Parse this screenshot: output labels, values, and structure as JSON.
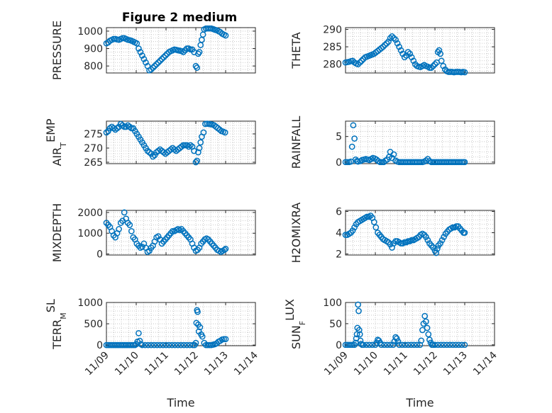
{
  "figure": {
    "title": "Figure 2 medium",
    "background": "#ffffff",
    "marker_color": "#0072BD"
  },
  "chart_data": [
    {
      "type": "scatter",
      "panel": "pressure",
      "title": "Figure 2 medium",
      "ylabel": "PRESSURE",
      "xlim": [
        0,
        5
      ],
      "ylim": [
        760,
        1020
      ],
      "yticks": [
        800,
        900,
        1000
      ],
      "xtick_labels": [
        "11/09",
        "11/10",
        "11/11",
        "11/12",
        "11/13",
        "11/14"
      ],
      "grid": true,
      "show_xticklabels": false,
      "xlabel": "",
      "x": [
        0.0,
        0.06,
        0.12,
        0.18,
        0.24,
        0.3,
        0.36,
        0.42,
        0.48,
        0.54,
        0.6,
        0.66,
        0.72,
        0.78,
        0.84,
        0.9,
        0.96,
        1.02,
        1.08,
        1.14,
        1.2,
        1.26,
        1.32,
        1.38,
        1.44,
        1.5,
        1.56,
        1.62,
        1.68,
        1.74,
        1.8,
        1.86,
        1.92,
        1.98,
        2.04,
        2.1,
        2.16,
        2.22,
        2.28,
        2.34,
        2.4,
        2.46,
        2.52,
        2.58,
        2.64,
        2.7,
        2.76,
        2.82,
        2.88,
        2.94,
        3.0,
        3.04,
        3.08,
        3.12,
        3.16,
        3.2,
        3.24,
        3.28,
        3.34,
        3.4,
        3.46,
        3.52,
        3.58,
        3.64,
        3.7,
        3.76,
        3.82,
        3.88,
        3.94,
        4.0
      ],
      "y": [
        930,
        935,
        945,
        950,
        955,
        955,
        952,
        950,
        955,
        960,
        960,
        955,
        950,
        948,
        945,
        940,
        935,
        930,
        900,
        880,
        860,
        840,
        820,
        800,
        775,
        780,
        790,
        800,
        810,
        820,
        830,
        840,
        850,
        860,
        870,
        880,
        885,
        890,
        895,
        893,
        890,
        888,
        885,
        880,
        890,
        900,
        900,
        895,
        895,
        880,
        800,
        790,
        870,
        880,
        920,
        950,
        980,
        1010,
        1015,
        1015,
        1015,
        1015,
        1012,
        1008,
        1005,
        1000,
        995,
        985,
        980,
        975
      ]
    },
    {
      "type": "scatter",
      "panel": "theta",
      "title": "",
      "ylabel": "THETA",
      "xlim": [
        0,
        5
      ],
      "ylim": [
        277.5,
        290.5
      ],
      "yticks": [
        280,
        285,
        290
      ],
      "xtick_labels": [
        "11/09",
        "11/10",
        "11/11",
        "11/12",
        "11/13",
        "11/14"
      ],
      "grid": true,
      "show_xticklabels": false,
      "xlabel": "",
      "x": [
        0.0,
        0.06,
        0.12,
        0.18,
        0.24,
        0.3,
        0.36,
        0.42,
        0.48,
        0.54,
        0.6,
        0.66,
        0.72,
        0.78,
        0.84,
        0.9,
        0.96,
        1.02,
        1.08,
        1.14,
        1.2,
        1.26,
        1.32,
        1.38,
        1.44,
        1.5,
        1.56,
        1.62,
        1.68,
        1.74,
        1.8,
        1.86,
        1.92,
        1.98,
        2.04,
        2.1,
        2.16,
        2.22,
        2.28,
        2.34,
        2.4,
        2.46,
        2.52,
        2.58,
        2.64,
        2.7,
        2.76,
        2.82,
        2.88,
        2.94,
        3.0,
        3.06,
        3.1,
        3.14,
        3.18,
        3.22,
        3.28,
        3.34,
        3.4,
        3.46,
        3.52,
        3.58,
        3.64,
        3.7,
        3.76,
        3.82,
        3.88,
        3.94,
        4.0
      ],
      "y": [
        280.5,
        280.6,
        280.7,
        280.9,
        281.0,
        280.5,
        280.2,
        280.0,
        280.5,
        281.0,
        281.5,
        282.0,
        282.2,
        282.4,
        282.6,
        282.8,
        283.0,
        283.4,
        283.8,
        284.2,
        284.6,
        285.0,
        285.5,
        286.0,
        286.5,
        287.5,
        288.0,
        287.5,
        287.0,
        286.0,
        285.0,
        284.0,
        283.0,
        282.0,
        282.5,
        283.5,
        283.0,
        282.0,
        281.0,
        280.0,
        279.5,
        279.3,
        279.2,
        279.5,
        279.8,
        279.5,
        279.3,
        279.0,
        279.0,
        279.5,
        280.0,
        280.5,
        283.5,
        284.0,
        283.0,
        281.0,
        279.5,
        278.5,
        278.0,
        277.8,
        277.8,
        277.8,
        277.7,
        277.8,
        277.8,
        277.8,
        277.7,
        277.8,
        277.7
      ]
    },
    {
      "type": "scatter",
      "panel": "air_temp",
      "title": "",
      "ylabel_main": "AIR",
      "ylabel_sub": "T",
      "ylabel_rest": "EMP",
      "xlim": [
        0,
        5
      ],
      "ylim": [
        264.5,
        279.5
      ],
      "yticks": [
        265,
        270,
        275
      ],
      "xtick_labels": [
        "11/09",
        "11/10",
        "11/11",
        "11/12",
        "11/13",
        "11/14"
      ],
      "grid": true,
      "show_xticklabels": false,
      "xlabel": "",
      "x": [
        0.0,
        0.06,
        0.12,
        0.18,
        0.24,
        0.3,
        0.36,
        0.42,
        0.48,
        0.54,
        0.6,
        0.66,
        0.72,
        0.78,
        0.84,
        0.9,
        0.96,
        1.02,
        1.08,
        1.14,
        1.2,
        1.26,
        1.32,
        1.38,
        1.44,
        1.5,
        1.56,
        1.62,
        1.68,
        1.74,
        1.8,
        1.86,
        1.92,
        1.98,
        2.04,
        2.1,
        2.16,
        2.22,
        2.28,
        2.34,
        2.4,
        2.46,
        2.52,
        2.58,
        2.64,
        2.7,
        2.76,
        2.82,
        2.88,
        2.94,
        3.0,
        3.04,
        3.08,
        3.12,
        3.16,
        3.2,
        3.26,
        3.32,
        3.38,
        3.44,
        3.5,
        3.56,
        3.62,
        3.68,
        3.74,
        3.8,
        3.86,
        3.92,
        3.98
      ],
      "y": [
        275.5,
        276.0,
        277.0,
        277.5,
        277.0,
        276.5,
        277.0,
        277.5,
        278.5,
        278.0,
        277.5,
        277.5,
        278.0,
        277.5,
        277.0,
        277.0,
        276.0,
        275.0,
        274.0,
        273.0,
        272.0,
        271.0,
        270.0,
        269.0,
        268.5,
        268.0,
        267.0,
        267.5,
        268.5,
        269.0,
        269.5,
        269.0,
        268.5,
        268.0,
        268.5,
        269.0,
        269.5,
        270.0,
        269.5,
        269.0,
        269.5,
        270.0,
        270.5,
        271.0,
        271.0,
        271.0,
        270.5,
        271.0,
        270.5,
        269.0,
        265.0,
        265.5,
        268.5,
        270.0,
        272.0,
        274.0,
        275.5,
        278.5,
        278.6,
        278.5,
        278.4,
        278.3,
        278.0,
        277.5,
        277.0,
        276.5,
        276.0,
        275.8,
        275.5
      ]
    },
    {
      "type": "scatter",
      "panel": "rainfall",
      "title": "",
      "ylabel": "RAINFALL",
      "xlim": [
        0,
        5
      ],
      "ylim": [
        -0.3,
        8
      ],
      "yticks": [
        0,
        5
      ],
      "xtick_labels": [
        "11/09",
        "11/10",
        "11/11",
        "11/12",
        "11/13",
        "11/14"
      ],
      "grid": true,
      "show_xticklabels": false,
      "xlabel": "",
      "x": [
        0.0,
        0.06,
        0.12,
        0.18,
        0.22,
        0.26,
        0.3,
        0.34,
        0.38,
        0.42,
        0.5,
        0.56,
        0.62,
        0.68,
        0.74,
        0.8,
        0.86,
        0.92,
        0.98,
        1.04,
        1.1,
        1.16,
        1.22,
        1.28,
        1.34,
        1.4,
        1.46,
        1.5,
        1.56,
        1.62,
        1.68,
        1.74,
        1.8,
        1.86,
        1.92,
        1.98,
        2.04,
        2.1,
        2.16,
        2.22,
        2.28,
        2.34,
        2.4,
        2.46,
        2.52,
        2.58,
        2.64,
        2.7,
        2.76,
        2.82,
        2.88,
        2.94,
        3.0,
        3.06,
        3.12,
        3.18,
        3.24,
        3.3,
        3.36,
        3.42,
        3.48,
        3.54,
        3.6,
        3.66,
        3.72,
        3.78,
        3.84,
        3.9,
        3.96,
        4.0
      ],
      "y": [
        0,
        0,
        0,
        0.1,
        3.0,
        7.2,
        4.6,
        0.5,
        0.2,
        0.1,
        0.2,
        0.4,
        0.5,
        0.6,
        0.5,
        0.4,
        0.6,
        0.8,
        0.7,
        0.5,
        0.2,
        0,
        0,
        0,
        0.3,
        0.5,
        1.0,
        2.0,
        0.8,
        1.5,
        0.3,
        0.1,
        0,
        0,
        0,
        0,
        0,
        0,
        0,
        0,
        0,
        0,
        0,
        0,
        0,
        0,
        0.1,
        0.3,
        0.6,
        0.2,
        0,
        0,
        0,
        0,
        0,
        0,
        0,
        0,
        0,
        0,
        0,
        0,
        0,
        0,
        0,
        0,
        0,
        0,
        0,
        0
      ]
    },
    {
      "type": "scatter",
      "panel": "mixdepth",
      "title": "",
      "ylabel": "MIXDEPTH",
      "xlim": [
        0,
        5
      ],
      "ylim": [
        -50,
        2100
      ],
      "yticks": [
        0,
        1000,
        2000
      ],
      "xtick_labels": [
        "11/09",
        "11/10",
        "11/11",
        "11/12",
        "11/13",
        "11/14"
      ],
      "grid": true,
      "show_xticklabels": false,
      "xlabel": "",
      "x": [
        0.0,
        0.06,
        0.12,
        0.18,
        0.24,
        0.3,
        0.36,
        0.42,
        0.48,
        0.54,
        0.6,
        0.66,
        0.72,
        0.78,
        0.84,
        0.9,
        0.96,
        1.02,
        1.08,
        1.14,
        1.2,
        1.26,
        1.32,
        1.38,
        1.44,
        1.5,
        1.56,
        1.62,
        1.68,
        1.74,
        1.8,
        1.86,
        1.92,
        1.98,
        2.04,
        2.1,
        2.16,
        2.22,
        2.28,
        2.34,
        2.4,
        2.46,
        2.52,
        2.58,
        2.64,
        2.7,
        2.76,
        2.82,
        2.88,
        2.94,
        3.0,
        3.06,
        3.12,
        3.18,
        3.24,
        3.3,
        3.36,
        3.42,
        3.48,
        3.54,
        3.6,
        3.66,
        3.72,
        3.78,
        3.84,
        3.9,
        3.96,
        4.0
      ],
      "y": [
        1500,
        1400,
        1300,
        1100,
        900,
        800,
        1000,
        1200,
        1500,
        1600,
        2000,
        1700,
        1500,
        1400,
        1100,
        800,
        700,
        500,
        400,
        300,
        350,
        500,
        300,
        100,
        150,
        300,
        400,
        600,
        800,
        850,
        700,
        500,
        600,
        700,
        800,
        900,
        1000,
        1100,
        1100,
        1150,
        1200,
        1150,
        1200,
        1100,
        1000,
        900,
        800,
        700,
        500,
        300,
        150,
        200,
        300,
        500,
        600,
        700,
        750,
        700,
        600,
        500,
        400,
        300,
        200,
        150,
        100,
        150,
        200,
        250
      ]
    },
    {
      "type": "scatter",
      "panel": "h2omixra",
      "title": "",
      "ylabel": "H2OMIXRA",
      "xlim": [
        0,
        5
      ],
      "ylim": [
        1.9,
        6.1
      ],
      "yticks": [
        2,
        4,
        6
      ],
      "xtick_labels": [
        "11/09",
        "11/10",
        "11/11",
        "11/12",
        "11/13",
        "11/14"
      ],
      "grid": true,
      "show_xticklabels": false,
      "xlabel": "",
      "x": [
        0.0,
        0.06,
        0.12,
        0.18,
        0.24,
        0.3,
        0.36,
        0.42,
        0.48,
        0.54,
        0.6,
        0.66,
        0.72,
        0.78,
        0.84,
        0.9,
        0.96,
        1.02,
        1.08,
        1.14,
        1.2,
        1.26,
        1.32,
        1.38,
        1.44,
        1.5,
        1.56,
        1.62,
        1.68,
        1.74,
        1.8,
        1.86,
        1.92,
        1.98,
        2.04,
        2.1,
        2.16,
        2.22,
        2.28,
        2.34,
        2.4,
        2.46,
        2.52,
        2.58,
        2.64,
        2.7,
        2.76,
        2.82,
        2.88,
        2.94,
        3.0,
        3.04,
        3.08,
        3.12,
        3.18,
        3.24,
        3.3,
        3.36,
        3.42,
        3.48,
        3.54,
        3.6,
        3.66,
        3.72,
        3.78,
        3.84,
        3.9,
        3.96,
        4.0
      ],
      "y": [
        3.8,
        3.8,
        3.9,
        4.0,
        4.2,
        4.5,
        4.8,
        5.0,
        5.1,
        5.2,
        5.3,
        5.4,
        5.5,
        5.5,
        5.6,
        5.4,
        5.0,
        4.5,
        4.0,
        3.8,
        3.6,
        3.4,
        3.3,
        3.2,
        3.1,
        2.9,
        2.6,
        3.0,
        3.2,
        3.2,
        3.1,
        3.0,
        3.0,
        3.1,
        3.1,
        3.2,
        3.2,
        3.3,
        3.3,
        3.4,
        3.5,
        3.6,
        3.8,
        3.9,
        3.8,
        3.6,
        3.3,
        3.0,
        2.8,
        2.6,
        2.3,
        2.1,
        2.5,
        2.8,
        3.0,
        3.3,
        3.6,
        3.9,
        4.1,
        4.3,
        4.4,
        4.5,
        4.5,
        4.6,
        4.6,
        4.4,
        4.2,
        4.0,
        4.0
      ]
    },
    {
      "type": "scatter",
      "panel": "terr_msl",
      "title": "",
      "ylabel_main": "TERR",
      "ylabel_sub": "M",
      "ylabel_rest": "SL",
      "xlim": [
        0,
        5
      ],
      "ylim": [
        -15,
        1000
      ],
      "yticks": [
        0,
        500,
        1000
      ],
      "xtick_labels": [
        "11/09",
        "11/10",
        "11/11",
        "11/12",
        "11/13",
        "11/14"
      ],
      "grid": true,
      "show_xticklabels": true,
      "xlabel": "Time",
      "x": [
        0.0,
        0.06,
        0.12,
        0.18,
        0.24,
        0.3,
        0.36,
        0.42,
        0.48,
        0.54,
        0.6,
        0.66,
        0.72,
        0.78,
        0.84,
        0.9,
        0.96,
        1.0,
        1.04,
        1.08,
        1.12,
        1.16,
        1.2,
        1.3,
        1.4,
        1.5,
        1.6,
        1.7,
        1.8,
        1.9,
        2.0,
        2.1,
        2.2,
        2.3,
        2.4,
        2.5,
        2.6,
        2.7,
        2.8,
        2.9,
        2.96,
        3.0,
        3.02,
        3.04,
        3.06,
        3.08,
        3.1,
        3.14,
        3.18,
        3.22,
        3.28,
        3.34,
        3.4,
        3.46,
        3.52,
        3.58,
        3.64,
        3.7,
        3.76,
        3.82,
        3.88,
        3.94,
        4.0
      ],
      "y": [
        0,
        0,
        0,
        0,
        0,
        0,
        0,
        0,
        0,
        0,
        0,
        0,
        0,
        0,
        0,
        0,
        0,
        20,
        80,
        280,
        100,
        20,
        0,
        0,
        0,
        0,
        0,
        0,
        0,
        0,
        0,
        0,
        0,
        0,
        0,
        0,
        0,
        0,
        0,
        0,
        0,
        50,
        520,
        820,
        780,
        480,
        320,
        420,
        250,
        200,
        50,
        0,
        0,
        0,
        0,
        10,
        20,
        40,
        80,
        100,
        130,
        140,
        140
      ]
    },
    {
      "type": "scatter",
      "panel": "sun_flux",
      "title": "",
      "ylabel_main": "SUN",
      "ylabel_sub": "F",
      "ylabel_rest": "LUX",
      "xlim": [
        0,
        5
      ],
      "ylim": [
        -2,
        100
      ],
      "yticks": [
        0,
        50,
        100
      ],
      "xtick_labels": [
        "11/09",
        "11/10",
        "11/11",
        "11/12",
        "11/13",
        "11/14"
      ],
      "grid": true,
      "show_xticklabels": true,
      "xlabel": "Time",
      "x": [
        0.0,
        0.06,
        0.12,
        0.18,
        0.24,
        0.3,
        0.34,
        0.36,
        0.38,
        0.4,
        0.42,
        0.44,
        0.46,
        0.48,
        0.5,
        0.52,
        0.56,
        0.6,
        0.7,
        0.8,
        0.9,
        1.0,
        1.04,
        1.08,
        1.12,
        1.16,
        1.2,
        1.3,
        1.4,
        1.5,
        1.6,
        1.64,
        1.68,
        1.72,
        1.76,
        1.8,
        1.9,
        2.0,
        2.1,
        2.2,
        2.3,
        2.4,
        2.5,
        2.54,
        2.58,
        2.62,
        2.66,
        2.7,
        2.74,
        2.78,
        2.82,
        2.86,
        2.9,
        2.94,
        3.0,
        3.1,
        3.2,
        3.3,
        3.4,
        3.5,
        3.6,
        3.7,
        3.8,
        3.9,
        4.0
      ],
      "y": [
        0,
        0,
        0,
        0,
        0,
        0,
        5,
        15,
        25,
        40,
        95,
        80,
        35,
        25,
        10,
        2,
        0,
        0,
        0,
        0,
        0,
        0,
        5,
        12,
        10,
        5,
        0,
        0,
        0,
        0,
        0,
        8,
        18,
        15,
        8,
        0,
        0,
        0,
        0,
        0,
        0,
        0,
        0,
        10,
        35,
        50,
        68,
        55,
        40,
        25,
        12,
        5,
        0,
        0,
        0,
        0,
        0,
        0,
        0,
        0,
        0,
        0,
        0,
        0,
        0
      ]
    }
  ]
}
